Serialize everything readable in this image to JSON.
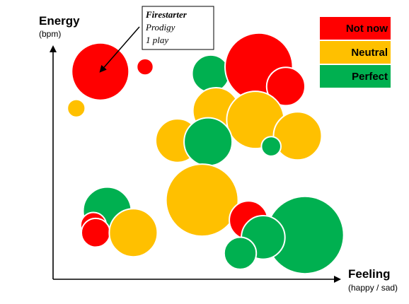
{
  "chart_data": {
    "type": "scatter",
    "variant": "bubble",
    "title": "",
    "xlabel": "Feeling",
    "xlabel_sub": "(happy / sad)",
    "ylabel": "Energy",
    "ylabel_sub": "(bpm)",
    "xlim": [
      0,
      100
    ],
    "ylim": [
      0,
      100
    ],
    "grid": false,
    "legend_position": "top-right",
    "categories": [
      {
        "key": "not_now",
        "label": "Not now",
        "color": "#ff0000"
      },
      {
        "key": "neutral",
        "label": "Neutral",
        "color": "#ffc000"
      },
      {
        "key": "perfect",
        "label": "Perfect",
        "color": "#00b050"
      }
    ],
    "points": [
      {
        "x": 16.5,
        "y": 89.3,
        "r": 10,
        "category": "not_now"
      },
      {
        "x": 32.1,
        "y": 91.3,
        "r": 2.9,
        "category": "not_now"
      },
      {
        "x": 8.1,
        "y": 73.5,
        "r": 3.1,
        "category": "neutral"
      },
      {
        "x": 55.0,
        "y": 88.4,
        "r": 6.5,
        "category": "perfect"
      },
      {
        "x": 56.9,
        "y": 72.4,
        "r": 8.1,
        "category": "neutral"
      },
      {
        "x": 71.8,
        "y": 91.3,
        "r": 11.8,
        "category": "not_now"
      },
      {
        "x": 81.2,
        "y": 82.9,
        "r": 6.7,
        "category": "not_now"
      },
      {
        "x": 70.6,
        "y": 68.5,
        "r": 10,
        "category": "neutral"
      },
      {
        "x": 85.3,
        "y": 61.6,
        "r": 8.4,
        "category": "neutral"
      },
      {
        "x": 43.4,
        "y": 59.6,
        "r": 7.6,
        "category": "neutral"
      },
      {
        "x": 54.1,
        "y": 59.1,
        "r": 8.4,
        "category": "perfect"
      },
      {
        "x": 76.1,
        "y": 57.1,
        "r": 3.4,
        "category": "perfect"
      },
      {
        "x": 52.0,
        "y": 34.0,
        "r": 12.6,
        "category": "neutral"
      },
      {
        "x": 18.9,
        "y": 29.3,
        "r": 8.4,
        "category": "perfect"
      },
      {
        "x": 14.1,
        "y": 23.2,
        "r": 4.5,
        "category": "not_now"
      },
      {
        "x": 14.9,
        "y": 20.0,
        "r": 5.0,
        "category": "not_now"
      },
      {
        "x": 28.0,
        "y": 20.0,
        "r": 8.4,
        "category": "neutral"
      },
      {
        "x": 68.2,
        "y": 25.4,
        "r": 6.7,
        "category": "not_now"
      },
      {
        "x": 87.9,
        "y": 19.0,
        "r": 13.5,
        "category": "perfect"
      },
      {
        "x": 73.3,
        "y": 18.0,
        "r": 7.6,
        "category": "perfect"
      },
      {
        "x": 65.3,
        "y": 11.2,
        "r": 5.6,
        "category": "perfect"
      }
    ],
    "annotations": [
      {
        "lines": [
          "Firestarter",
          "Prodigy",
          "1 play"
        ],
        "target_point": 0
      }
    ]
  }
}
